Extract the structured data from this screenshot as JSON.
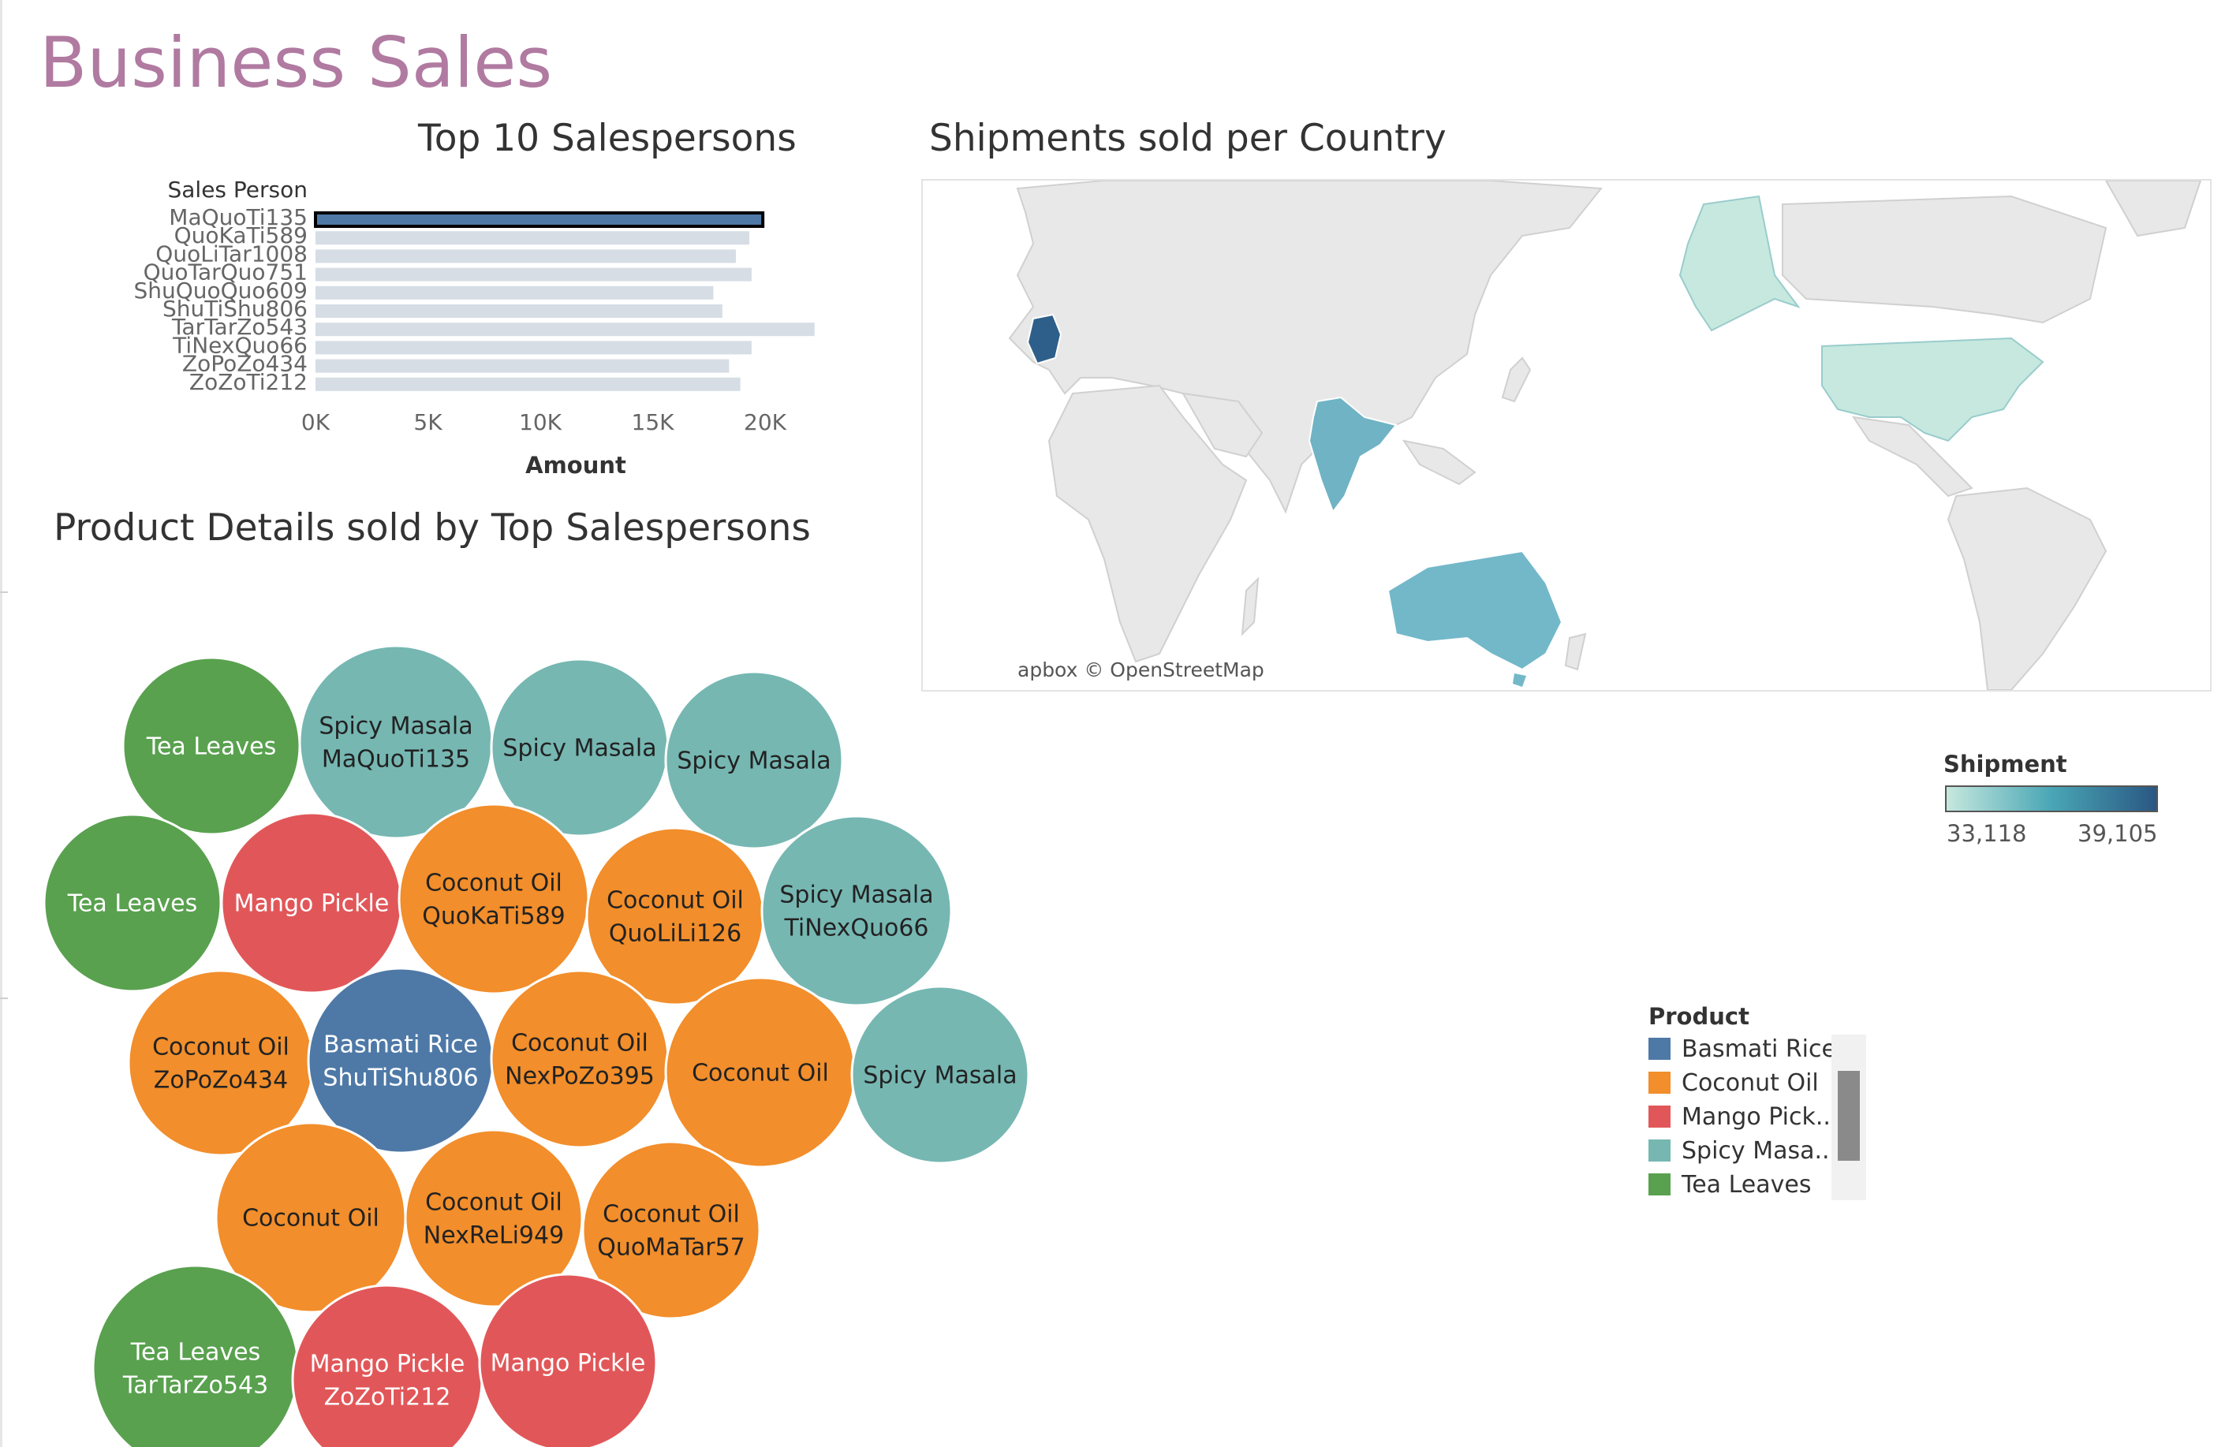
{
  "dashboard": {
    "title": "Business Sales"
  },
  "bar_sheet": {
    "title": "Top 10 Salespersons",
    "row_header": "Sales Person",
    "x_axis_title": "Amount",
    "x_ticks": [
      "0K",
      "5K",
      "10K",
      "15K",
      "20K"
    ],
    "highlight_color": "#4e79a7",
    "bar_color": "#d6dde5"
  },
  "map_sheet": {
    "title": "Shipments sold per Country",
    "attribution": "apbox © OpenStreetMap",
    "highlighted_countries": [
      {
        "name": "Germany",
        "level": "high"
      },
      {
        "name": "India",
        "level": "mid"
      },
      {
        "name": "Australia",
        "level": "mid"
      },
      {
        "name": "United States",
        "level": "low"
      }
    ]
  },
  "bubble_sheet": {
    "title": "Product Details sold by Top Salespersons"
  },
  "shipment_legend": {
    "title": "Shipment",
    "min_label": "33,118",
    "max_label": "39,105",
    "color_low": "#c6e8de",
    "color_mid": "#49a6b5",
    "color_high": "#2a5783"
  },
  "product_legend": {
    "title": "Product",
    "items": [
      {
        "label": "Basmati Rice",
        "color": "#4e79a7"
      },
      {
        "label": "Coconut Oil",
        "color": "#f28e2b"
      },
      {
        "label": "Mango Pick..",
        "color": "#e15759"
      },
      {
        "label": "Spicy Masa..",
        "color": "#76b7b2"
      },
      {
        "label": "Tea Leaves",
        "color": "#59a14f"
      }
    ]
  },
  "chart_data": [
    {
      "type": "bar",
      "title": "Top 10 Salespersons",
      "xlabel": "Amount",
      "ylabel": "Sales Person",
      "orientation": "horizontal",
      "xlim": [
        0,
        23000
      ],
      "categories": [
        "MaQuoTi135",
        "QuoKaTi589",
        "QuoLiTar1008",
        "QuoTarQuo751",
        "ShuQuoQuo609",
        "ShuTiShu806",
        "TarTarZo543",
        "TiNexQuo66",
        "ZoPoZo434",
        "ZoZoTi212"
      ],
      "values": [
        19900,
        19300,
        18700,
        19400,
        17700,
        18100,
        22200,
        19400,
        18400,
        18900
      ],
      "highlighted": "MaQuoTi135"
    },
    {
      "type": "bubble",
      "title": "Product Details sold by Top Salespersons",
      "bubbles": [
        {
          "product": "Tea Leaves",
          "label": "Tea Leaves",
          "salesperson": ""
        },
        {
          "product": "Spicy Masala",
          "label": "Spicy Masala",
          "salesperson": "MaQuoTi135"
        },
        {
          "product": "Spicy Masala",
          "label": "Spicy Masala",
          "salesperson": ""
        },
        {
          "product": "Spicy Masala",
          "label": "Spicy Masala",
          "salesperson": ""
        },
        {
          "product": "Tea Leaves",
          "label": "Tea Leaves",
          "salesperson": ""
        },
        {
          "product": "Mango Pickle",
          "label": "Mango Pickle",
          "salesperson": ""
        },
        {
          "product": "Coconut Oil",
          "label": "Coconut Oil",
          "salesperson": "QuoKaTi589"
        },
        {
          "product": "Coconut Oil",
          "label": "Coconut Oil",
          "salesperson": "QuoLiLi126"
        },
        {
          "product": "Spicy Masala",
          "label": "Spicy Masala",
          "salesperson": "TiNexQuo66"
        },
        {
          "product": "Coconut Oil",
          "label": "Coconut Oil",
          "salesperson": "ZoPoZo434"
        },
        {
          "product": "Basmati Rice",
          "label": "Basmati Rice",
          "salesperson": "ShuTiShu806"
        },
        {
          "product": "Coconut Oil",
          "label": "Coconut Oil",
          "salesperson": "NexPoZo395"
        },
        {
          "product": "Coconut Oil",
          "label": "Coconut Oil",
          "salesperson": ""
        },
        {
          "product": "Spicy Masala",
          "label": "Spicy Masala",
          "salesperson": ""
        },
        {
          "product": "Coconut Oil",
          "label": "Coconut Oil",
          "salesperson": ""
        },
        {
          "product": "Coconut Oil",
          "label": "Coconut Oil",
          "salesperson": "NexReLi949"
        },
        {
          "product": "Coconut Oil",
          "label": "Coconut Oil",
          "salesperson": "QuoMaTar57"
        },
        {
          "product": "Tea Leaves",
          "label": "Tea Leaves",
          "salesperson": "TarTarZo543"
        },
        {
          "product": "Mango Pickle",
          "label": "Mango Pickle",
          "salesperson": "ZoZoTi212"
        },
        {
          "product": "Mango Pickle",
          "label": "Mango Pickle",
          "salesperson": ""
        }
      ]
    }
  ]
}
